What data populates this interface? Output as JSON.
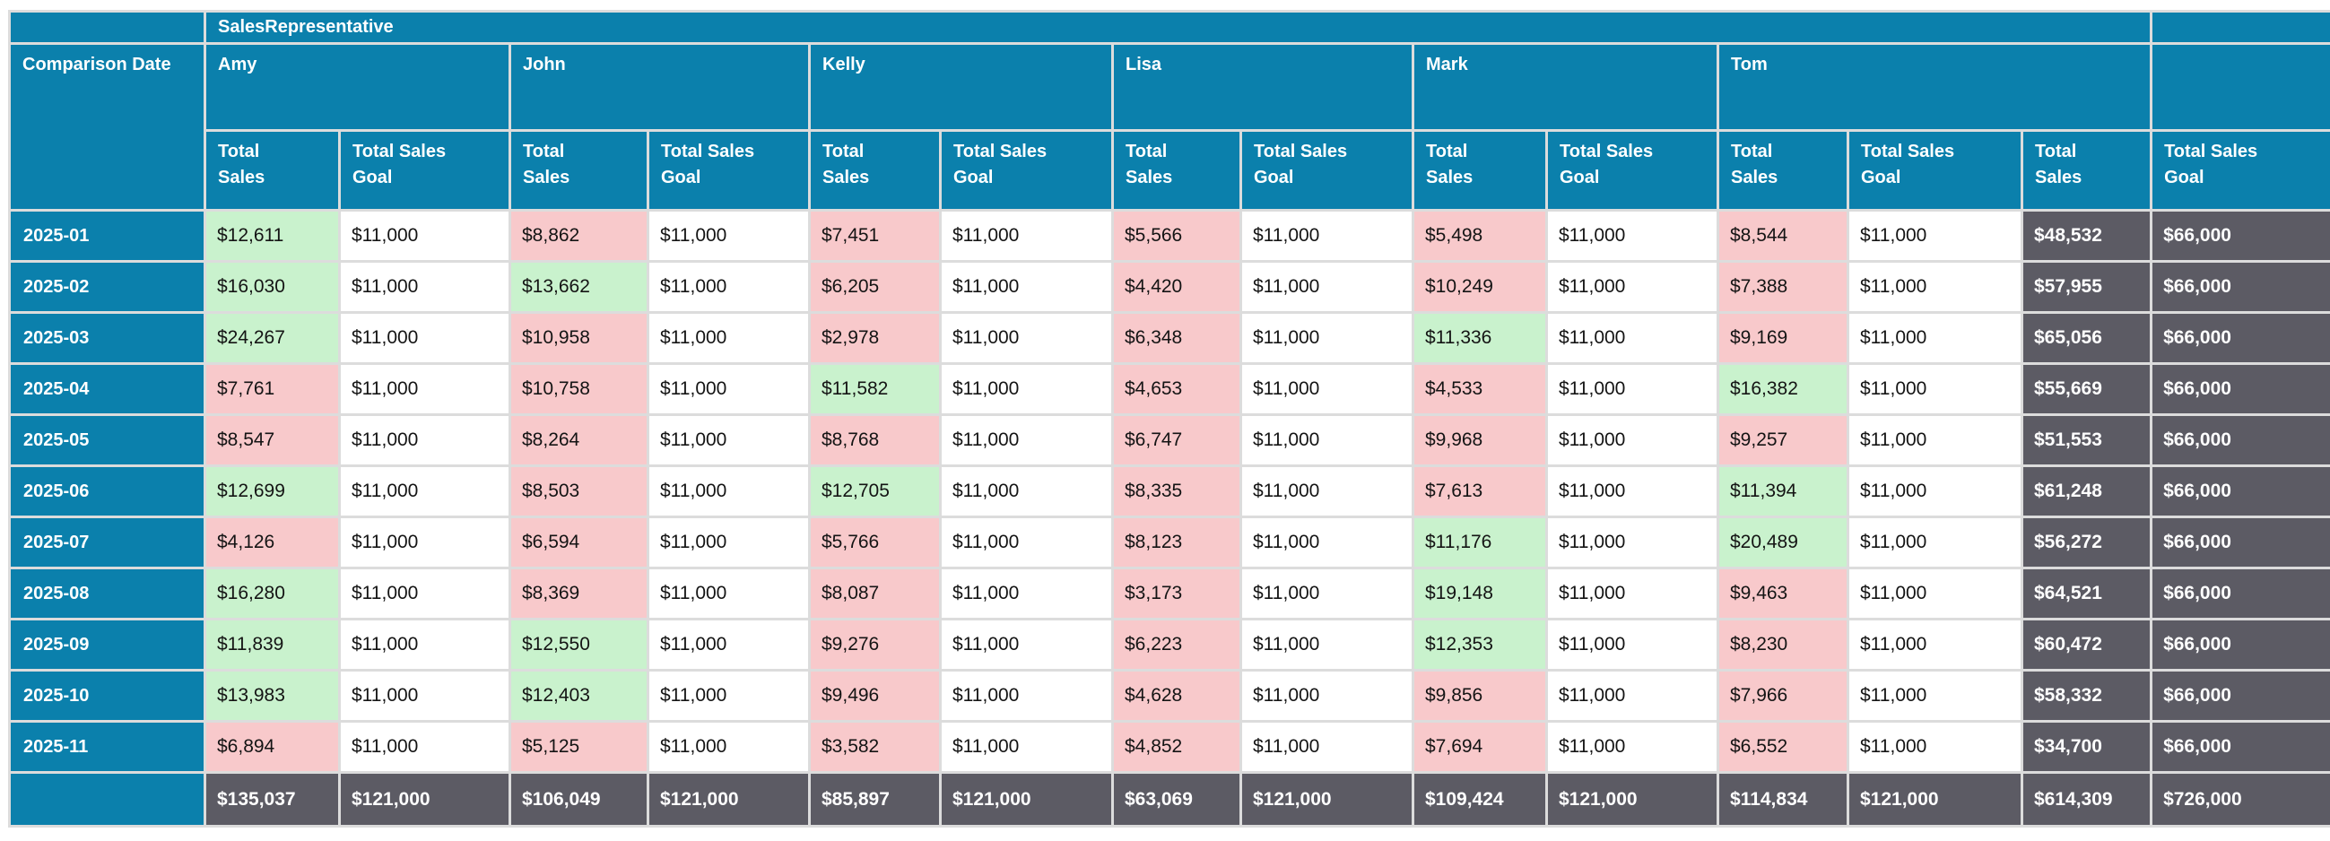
{
  "chart_data": {
    "type": "table",
    "group_header": "SalesRepresentative",
    "row_dimension": "Comparison Date",
    "columns": [
      "Amy",
      "John",
      "Kelly",
      "Lisa",
      "Mark",
      "Tom"
    ],
    "measures": [
      "Total Sales",
      "Total Sales Goal"
    ],
    "monthly_goal_per_rep": 11000,
    "monthly_goal_row_total": 66000,
    "rows": [
      {
        "date": "2025-01",
        "sales": [
          12611,
          8862,
          7451,
          5566,
          5498,
          8544
        ],
        "total": 48532
      },
      {
        "date": "2025-02",
        "sales": [
          16030,
          13662,
          6205,
          4420,
          10249,
          7388
        ],
        "total": 57955
      },
      {
        "date": "2025-03",
        "sales": [
          24267,
          10958,
          2978,
          6348,
          11336,
          9169
        ],
        "total": 65056
      },
      {
        "date": "2025-04",
        "sales": [
          7761,
          10758,
          11582,
          4653,
          4533,
          16382
        ],
        "total": 55669
      },
      {
        "date": "2025-05",
        "sales": [
          8547,
          8264,
          8768,
          6747,
          9968,
          9257
        ],
        "total": 51553
      },
      {
        "date": "2025-06",
        "sales": [
          12699,
          8503,
          12705,
          8335,
          7613,
          11394
        ],
        "total": 61248
      },
      {
        "date": "2025-07",
        "sales": [
          4126,
          6594,
          5766,
          8123,
          11176,
          20489
        ],
        "total": 56272
      },
      {
        "date": "2025-08",
        "sales": [
          16280,
          8369,
          8087,
          3173,
          19148,
          9463
        ],
        "total": 64521
      },
      {
        "date": "2025-09",
        "sales": [
          11839,
          12550,
          9276,
          6223,
          12353,
          8230
        ],
        "total": 60472
      },
      {
        "date": "2025-10",
        "sales": [
          13983,
          12403,
          9496,
          4628,
          9856,
          7966
        ],
        "total": 58332
      },
      {
        "date": "2025-11",
        "sales": [
          6894,
          5125,
          3582,
          4852,
          7694,
          6552
        ],
        "total": 34700
      }
    ],
    "footer": {
      "sales": [
        135037,
        106049,
        85897,
        63069,
        109424,
        114834
      ],
      "goal_per_rep": 121000,
      "grand_total": 614309,
      "grand_goal": 726000
    }
  },
  "colors": {
    "header_teal": "#0b80ac",
    "above_goal_green": "#c9f2cd",
    "below_goal_pink": "#f8c9cb",
    "total_gray": "#5c5b64",
    "grid_border": "#dcdcdc"
  }
}
